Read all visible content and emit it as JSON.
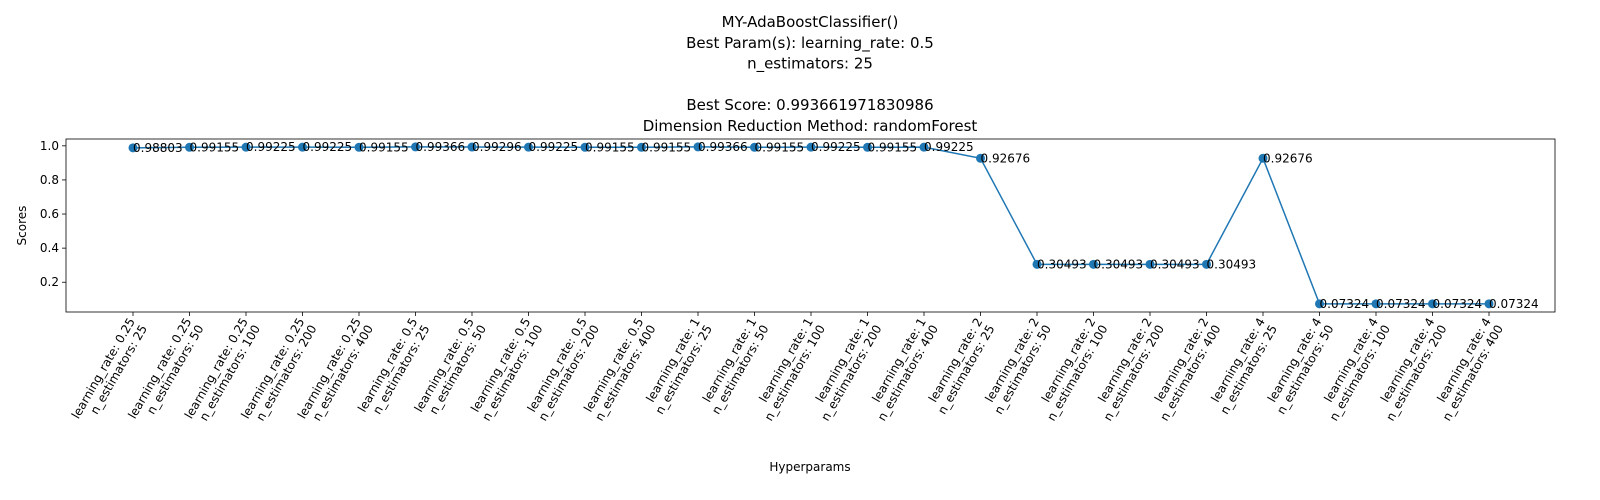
{
  "chart_data": {
    "type": "line",
    "title_lines": [
      "MY-AdaBoostClassifier()",
      "Best Param(s): learning_rate: 0.5",
      "n_estimators: 25",
      "",
      "Best Score: 0.993661971830986",
      "Dimension Reduction Method: randomForest"
    ],
    "xlabel": "Hyperparams",
    "ylabel": "Scores",
    "ylim": [
      0.0255,
      1.04
    ],
    "yticks": [
      "0.2",
      "0.4",
      "0.6",
      "0.8",
      "1.0"
    ],
    "series_color": "#1f77b4",
    "categories": [
      [
        "learning_rate: 0.25",
        "n_estimators: 25"
      ],
      [
        "learning_rate: 0.25",
        "n_estimators: 50"
      ],
      [
        "learning_rate: 0.25",
        "n_estimators: 100"
      ],
      [
        "learning_rate: 0.25",
        "n_estimators: 200"
      ],
      [
        "learning_rate: 0.25",
        "n_estimators: 400"
      ],
      [
        "learning_rate: 0.5",
        "n_estimators: 25"
      ],
      [
        "learning_rate: 0.5",
        "n_estimators: 50"
      ],
      [
        "learning_rate: 0.5",
        "n_estimators: 100"
      ],
      [
        "learning_rate: 0.5",
        "n_estimators: 200"
      ],
      [
        "learning_rate: 0.5",
        "n_estimators: 400"
      ],
      [
        "learning_rate: 1",
        "n_estimators: 25"
      ],
      [
        "learning_rate: 1",
        "n_estimators: 50"
      ],
      [
        "learning_rate: 1",
        "n_estimators: 100"
      ],
      [
        "learning_rate: 1",
        "n_estimators: 200"
      ],
      [
        "learning_rate: 1",
        "n_estimators: 400"
      ],
      [
        "learning_rate: 2",
        "n_estimators: 25"
      ],
      [
        "learning_rate: 2",
        "n_estimators: 50"
      ],
      [
        "learning_rate: 2",
        "n_estimators: 100"
      ],
      [
        "learning_rate: 2",
        "n_estimators: 200"
      ],
      [
        "learning_rate: 2",
        "n_estimators: 400"
      ],
      [
        "learning_rate: 4",
        "n_estimators: 25"
      ],
      [
        "learning_rate: 4",
        "n_estimators: 50"
      ],
      [
        "learning_rate: 4",
        "n_estimators: 100"
      ],
      [
        "learning_rate: 4",
        "n_estimators: 200"
      ],
      [
        "learning_rate: 4",
        "n_estimators: 400"
      ]
    ],
    "values": [
      0.98803,
      0.99155,
      0.99225,
      0.99225,
      0.99155,
      0.99366,
      0.99296,
      0.99225,
      0.99155,
      0.99155,
      0.99366,
      0.99155,
      0.99225,
      0.99155,
      0.99225,
      0.92676,
      0.30493,
      0.30493,
      0.30493,
      0.30493,
      0.92676,
      0.07324,
      0.07324,
      0.07324,
      0.07324
    ],
    "value_labels": [
      "0.98803",
      "0.99155",
      "0.99225",
      "0.99225",
      "0.99155",
      "0.99366",
      "0.99296",
      "0.99225",
      "0.99155",
      "0.99155",
      "0.99366",
      "0.99155",
      "0.99225",
      "0.99155",
      "0.99225",
      "0.92676",
      "0.30493",
      "0.30493",
      "0.30493",
      "0.30493",
      "0.92676",
      "0.07324",
      "0.07324",
      "0.07324",
      "0.07324"
    ]
  }
}
